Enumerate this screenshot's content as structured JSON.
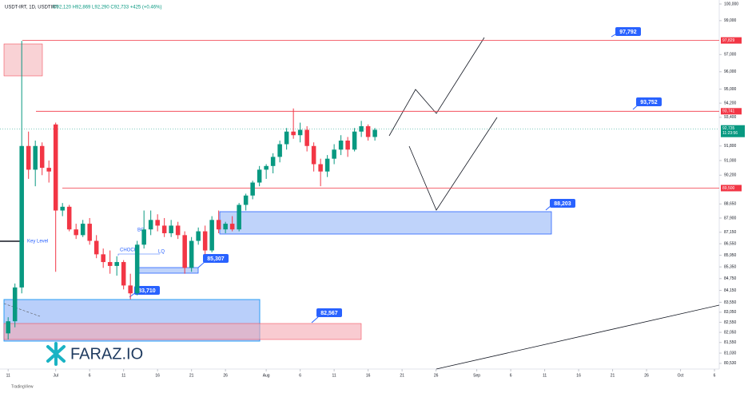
{
  "chart_data": {
    "type": "candlestick",
    "header": "USDT-IRT, 1D, USDTIRT",
    "ohlc_info": "O92,120 H92,869 L92,290 C92,733 +425 (+0.46%)",
    "log_scale": true,
    "up_color": "#089981",
    "down_color": "#f23645",
    "ylim": [
      80256,
      100241
    ],
    "xlim": [
      -1.2,
      104.7
    ],
    "yticks": [
      {
        "value": 100000,
        "label": "100,000"
      },
      {
        "value": 99000,
        "label": "99,000"
      },
      {
        "value": 97000,
        "label": "97,000"
      },
      {
        "value": 96000,
        "label": "96,000"
      },
      {
        "value": 95000,
        "label": "95,000"
      },
      {
        "value": 94200,
        "label": "94,200"
      },
      {
        "value": 93400,
        "label": "93,400"
      },
      {
        "value": 91800,
        "label": "91,800"
      },
      {
        "value": 91000,
        "label": "91,000"
      },
      {
        "value": 90200,
        "label": "90,200"
      },
      {
        "value": 88650,
        "label": "88,650"
      },
      {
        "value": 87900,
        "label": "87,900"
      },
      {
        "value": 87150,
        "label": "87,150"
      },
      {
        "value": 86550,
        "label": "86,550"
      },
      {
        "value": 85950,
        "label": "85,950"
      },
      {
        "value": 85350,
        "label": "85,350"
      },
      {
        "value": 84750,
        "label": "84,750"
      },
      {
        "value": 84150,
        "label": "84,150"
      },
      {
        "value": 83550,
        "label": "83,550"
      },
      {
        "value": 83050,
        "label": "83,050"
      },
      {
        "value": 82550,
        "label": "82,550"
      },
      {
        "value": 82050,
        "label": "82,050"
      },
      {
        "value": 81550,
        "label": "81,550"
      },
      {
        "value": 81030,
        "label": "81,030"
      },
      {
        "value": 80530,
        "label": "80,530"
      }
    ],
    "xticks": [
      {
        "value": 0,
        "label": "11"
      },
      {
        "value": 7,
        "label": "Jul"
      },
      {
        "value": 12,
        "label": "6"
      },
      {
        "value": 17,
        "label": "11"
      },
      {
        "value": 22,
        "label": "16"
      },
      {
        "value": 27,
        "label": "21"
      },
      {
        "value": 32,
        "label": "26"
      },
      {
        "value": 38,
        "label": "Aug"
      },
      {
        "value": 43,
        "label": "6"
      },
      {
        "value": 48,
        "label": "11"
      },
      {
        "value": 53,
        "label": "16"
      },
      {
        "value": 58,
        "label": "21"
      },
      {
        "value": 63,
        "label": "26"
      },
      {
        "value": 69,
        "label": "Sep"
      },
      {
        "value": 74,
        "label": "6"
      },
      {
        "value": 79,
        "label": "11"
      },
      {
        "value": 84,
        "label": "16"
      },
      {
        "value": 89,
        "label": "21"
      },
      {
        "value": 94,
        "label": "26"
      },
      {
        "value": 99,
        "label": "Oct"
      },
      {
        "value": 104,
        "label": "6"
      }
    ],
    "open": [
      82000,
      82600,
      84300,
      91800,
      90500,
      91800,
      90600,
      93000,
      88300,
      88500,
      87300,
      87000,
      87600,
      86700,
      86000,
      85600,
      85400,
      85600,
      84400,
      84000,
      86500,
      87300,
      87800,
      87500,
      87100,
      87500,
      87000,
      85300,
      86700,
      87200,
      86200,
      87800,
      87300,
      87600,
      87300,
      88600,
      89100,
      89800,
      90500,
      90700,
      91200,
      91900,
      92600,
      92400,
      92700,
      91800,
      90800,
      90400,
      91100,
      91600,
      92100,
      91600,
      92600,
      92900,
      92300
    ],
    "high": [
      82800,
      84500,
      97800,
      92600,
      92100,
      92000,
      91000,
      93100,
      88700,
      88600,
      87600,
      87800,
      87900,
      87000,
      86300,
      86200,
      85900,
      85700,
      85000,
      86700,
      88300,
      88300,
      88100,
      87900,
      87800,
      87700,
      87200,
      86900,
      87400,
      87500,
      88000,
      88300,
      87700,
      88000,
      88700,
      89200,
      89900,
      90700,
      90800,
      91400,
      92100,
      92800,
      93900,
      93100,
      92900,
      92000,
      91100,
      91300,
      91900,
      92400,
      92300,
      92800,
      93200,
      93000,
      92800
    ],
    "low": [
      81700,
      82300,
      84000,
      90000,
      89600,
      90200,
      89800,
      85100,
      88000,
      87200,
      86800,
      86900,
      86500,
      85800,
      85300,
      85000,
      84900,
      84200,
      83700,
      83900,
      86300,
      87000,
      87200,
      86900,
      86900,
      86800,
      85000,
      85100,
      86500,
      86000,
      86100,
      87100,
      87100,
      87200,
      87200,
      88300,
      88900,
      89600,
      90000,
      90300,
      90900,
      91600,
      92200,
      92000,
      91500,
      90400,
      89600,
      90100,
      90800,
      91300,
      91200,
      91500,
      92300,
      92100,
      92100
    ],
    "close": [
      82600,
      84300,
      91800,
      90500,
      91800,
      90600,
      90400,
      88300,
      88500,
      87300,
      87000,
      87600,
      86700,
      86000,
      85600,
      85400,
      85600,
      84400,
      84000,
      86500,
      87300,
      87800,
      87500,
      87100,
      87500,
      87000,
      85300,
      86700,
      87200,
      86200,
      87800,
      87300,
      87600,
      87300,
      88600,
      89100,
      89800,
      90500,
      90700,
      91200,
      91900,
      92600,
      92400,
      92700,
      91800,
      90800,
      90400,
      91100,
      91600,
      92100,
      91600,
      92600,
      92900,
      92300,
      92700
    ],
    "levels": [
      {
        "value": 97829,
        "label": "97,829"
      },
      {
        "value": 93741,
        "label": "93,741"
      },
      {
        "value": 89500,
        "label": "89,500"
      }
    ],
    "last_price": {
      "value": 92735,
      "label": "92,735"
    },
    "countdown": "11:23:56",
    "annotations": [
      "97,792",
      "93,752",
      "88,203",
      "85,307",
      "83,710",
      "82,567"
    ],
    "notes": [
      "Key Level",
      "CHOCH",
      "LQ",
      "BO"
    ],
    "logo": "FARAZ.IO",
    "footer": "TradingView"
  }
}
